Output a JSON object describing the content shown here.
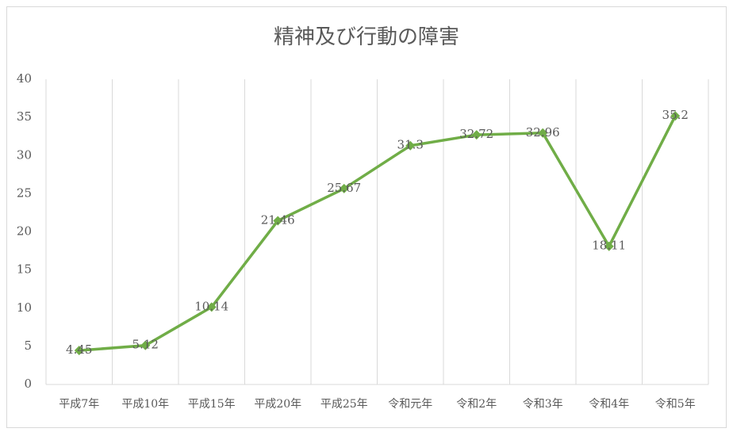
{
  "chart_data": {
    "type": "line",
    "title": "精神及び行動の障害",
    "categories": [
      "平成7年",
      "平成10年",
      "平成15年",
      "平成20年",
      "平成25年",
      "令和元年",
      "令和2年",
      "令和3年",
      "令和4年",
      "令和5年"
    ],
    "series": [
      {
        "name": "精神及び行動の障害",
        "color": "#70ad47",
        "values": [
          4.45,
          5.12,
          10.14,
          21.46,
          25.67,
          31.3,
          32.72,
          32.96,
          18.11,
          35.2
        ]
      }
    ],
    "ylim": [
      0,
      40
    ],
    "yticks": [
      0,
      5,
      10,
      15,
      20,
      25,
      30,
      35,
      40
    ],
    "grid": "vertical",
    "data_labels": true,
    "legend": false
  }
}
